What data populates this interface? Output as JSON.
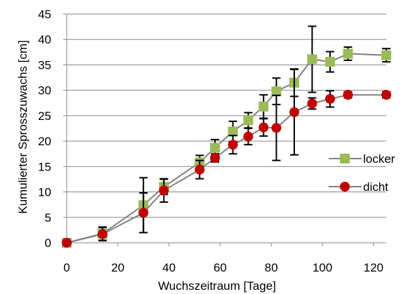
{
  "chart_data": {
    "type": "line",
    "xlabel": "Wuchszeitraum [Tage]",
    "ylabel": "Kumulierter  Sprosszuwachs  [cm]",
    "xlim": [
      0,
      125
    ],
    "ylim": [
      0,
      45
    ],
    "xticks": [
      0,
      20,
      40,
      60,
      80,
      100,
      120
    ],
    "yticks": [
      0,
      5,
      10,
      15,
      20,
      25,
      30,
      35,
      40,
      45
    ],
    "grid": "horizontal",
    "legend_position": "right",
    "series": [
      {
        "name": "locker",
        "marker": "square",
        "marker_color": "#9BBB59",
        "line_color": "#808080",
        "x": [
          0,
          14,
          30,
          38,
          52,
          58,
          65,
          71,
          77,
          82,
          89,
          96,
          103,
          110,
          125
        ],
        "y": [
          0,
          1.8,
          7.4,
          11.0,
          15.8,
          18.7,
          21.9,
          24.1,
          26.8,
          29.8,
          31.5,
          36.1,
          35.6,
          37.2,
          36.9
        ],
        "err": [
          0,
          1.3,
          5.4,
          1.5,
          1.4,
          1.6,
          2.0,
          1.5,
          2.3,
          2.6,
          2.7,
          6.5,
          2.0,
          1.3,
          1.3
        ]
      },
      {
        "name": "dicht",
        "marker": "circle",
        "marker_color": "#C00000",
        "line_color": "#808080",
        "x": [
          0,
          14,
          30,
          38,
          52,
          58,
          65,
          71,
          77,
          82,
          89,
          96,
          103,
          110,
          125
        ],
        "y": [
          0,
          1.7,
          5.9,
          10.3,
          14.4,
          16.7,
          19.3,
          20.9,
          22.7,
          22.6,
          25.7,
          27.4,
          28.3,
          29.1,
          29.1
        ],
        "err": [
          0,
          1.3,
          3.9,
          2.3,
          1.8,
          0.8,
          1.8,
          1.6,
          1.7,
          6.4,
          8.4,
          1.1,
          1.6,
          0.6,
          0.6
        ]
      }
    ]
  }
}
